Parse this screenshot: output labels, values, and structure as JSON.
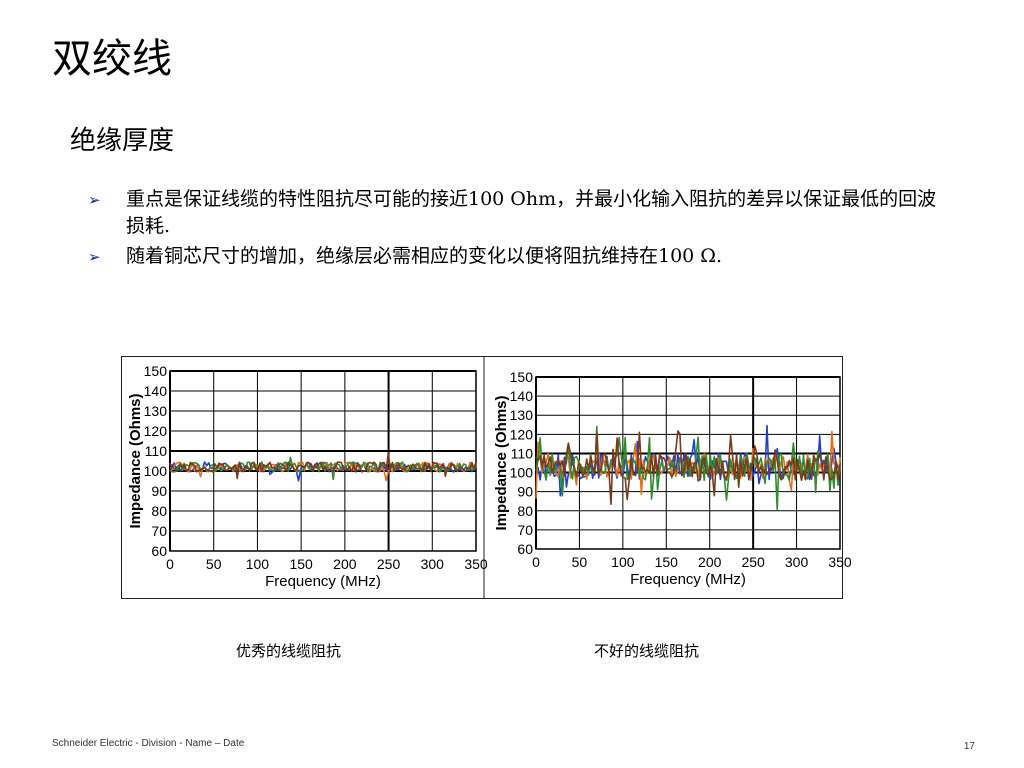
{
  "slide": {
    "title": "双绞线",
    "subtitle": "绝缘厚度",
    "bullets": [
      "重点是保证线缆的特性阻抗尽可能的接近100 Ohm，并最小化输入阻抗的差异以保证最低的回波损耗.",
      "随着铜芯尺寸的增加，绝缘层必需相应的变化以便将阻抗维持在100 Ω."
    ],
    "bullet_icon": "arrow-right-icon",
    "footer": "Schneider Electric - Division - Name – Date",
    "page_number": "17"
  },
  "captions": {
    "good": "优秀的线缆阻抗",
    "bad": "不好的线缆阻抗"
  },
  "chart_data": [
    {
      "type": "line",
      "caption": "优秀的线缆阻抗",
      "xlabel": "Frequency (MHz)",
      "ylabel": "Impedance (Ohms)",
      "xlim": [
        0,
        350
      ],
      "ylim": [
        60,
        150
      ],
      "xticks": [
        "0",
        "50",
        "100",
        "150",
        "200",
        "250",
        "300",
        "350"
      ],
      "yticks": [
        "150",
        "140",
        "130",
        "120",
        "110",
        "100",
        "90",
        "80",
        "70",
        "60"
      ],
      "grid": true,
      "series_colors": [
        "#1f3fd6",
        "#e2711d",
        "#2e8b2e",
        "#7a3a1a"
      ],
      "baseline": 102,
      "spread": 2.5,
      "spikes": 4
    },
    {
      "type": "line",
      "caption": "不好的线缆阻抗",
      "xlabel": "Frequency (MHz)",
      "ylabel": "Impedance (Ohms)",
      "xlim": [
        0,
        350
      ],
      "ylim": [
        60,
        150
      ],
      "xticks": [
        "0",
        "50",
        "100",
        "150",
        "200",
        "250",
        "300",
        "350"
      ],
      "yticks": [
        "150",
        "140",
        "130",
        "120",
        "110",
        "100",
        "90",
        "80",
        "70",
        "60"
      ],
      "grid": true,
      "series_colors": [
        "#1f3fd6",
        "#e2711d",
        "#2e8b2e",
        "#7a3a1a"
      ],
      "baseline": 103,
      "spread": 7,
      "spikes": 22
    }
  ]
}
